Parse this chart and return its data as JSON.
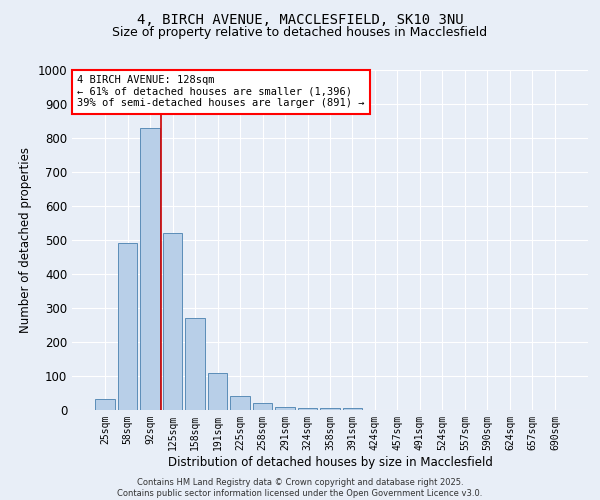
{
  "title_line1": "4, BIRCH AVENUE, MACCLESFIELD, SK10 3NU",
  "title_line2": "Size of property relative to detached houses in Macclesfield",
  "xlabel": "Distribution of detached houses by size in Macclesfield",
  "ylabel": "Number of detached properties",
  "categories": [
    "25sqm",
    "58sqm",
    "92sqm",
    "125sqm",
    "158sqm",
    "191sqm",
    "225sqm",
    "258sqm",
    "291sqm",
    "324sqm",
    "358sqm",
    "391sqm",
    "424sqm",
    "457sqm",
    "491sqm",
    "524sqm",
    "557sqm",
    "590sqm",
    "624sqm",
    "657sqm",
    "690sqm"
  ],
  "values": [
    33,
    490,
    830,
    520,
    270,
    108,
    40,
    20,
    10,
    5,
    5,
    5,
    0,
    0,
    0,
    0,
    0,
    0,
    0,
    0,
    0
  ],
  "ylim": [
    0,
    1000
  ],
  "yticks": [
    0,
    100,
    200,
    300,
    400,
    500,
    600,
    700,
    800,
    900,
    1000
  ],
  "bar_color": "#b8cfe8",
  "bar_edge_color": "#5b8db8",
  "bg_color": "#e8eef7",
  "grid_color": "#ffffff",
  "annotation_text": "4 BIRCH AVENUE: 128sqm\n← 61% of detached houses are smaller (1,396)\n39% of semi-detached houses are larger (891) →",
  "property_line_index": 2.5,
  "footer_line1": "Contains HM Land Registry data © Crown copyright and database right 2025.",
  "footer_line2": "Contains public sector information licensed under the Open Government Licence v3.0."
}
